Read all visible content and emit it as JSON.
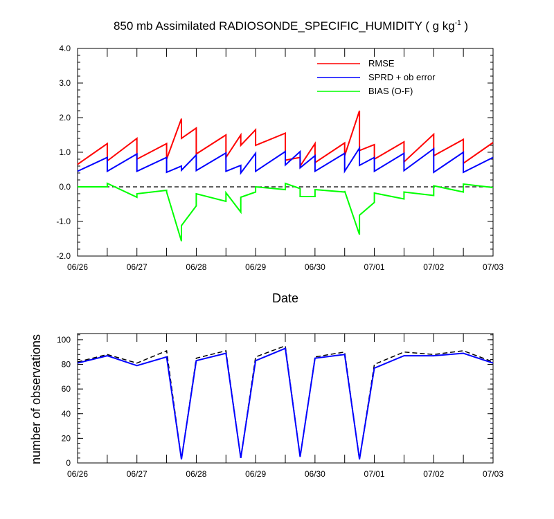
{
  "title": {
    "prefix": "850 mb Assimilated RADIOSONDE_SPECIFIC_HUMIDITY ( g kg",
    "superscript": "-1",
    "suffix": " )"
  },
  "top_xlabel": "Date",
  "bottom_ylabel": "number of observations",
  "chart_data": [
    {
      "type": "line",
      "title": "850 mb Assimilated RADIOSONDE_SPECIFIC_HUMIDITY ( g kg-1 )",
      "xlabel": "Date",
      "ylabel": "",
      "x_unit": "days since 06/26 00Z",
      "xlim": [
        0,
        7
      ],
      "ylim": [
        -2.0,
        4.0
      ],
      "x_tick_labels": [
        "06/26",
        "06/27",
        "06/28",
        "06/29",
        "06/30",
        "07/01",
        "07/02",
        "07/03"
      ],
      "y_tick_labels": [
        "-2.0",
        "-1.0",
        "0.0",
        "1.0",
        "2.0",
        "3.0",
        "4.0"
      ],
      "legend_position": "top-right",
      "zero_line": "dashed",
      "series": [
        {
          "name": "RMSE",
          "color": "#ff0000",
          "x": [
            0,
            0.5,
            0.5,
            1,
            1,
            1.5,
            1.5,
            1.75,
            1.75,
            2,
            2,
            2.5,
            2.5,
            2.75,
            2.75,
            3,
            3,
            3.5,
            3.5,
            3.75,
            3.75,
            4,
            4,
            4.5,
            4.5,
            4.75,
            4.75,
            5,
            5,
            5.5,
            5.5,
            6,
            6,
            6.5,
            6.5,
            7
          ],
          "y": [
            0.65,
            1.25,
            0.75,
            1.4,
            0.8,
            1.25,
            0.8,
            1.97,
            1.4,
            1.7,
            0.95,
            1.5,
            0.85,
            1.5,
            1.2,
            1.65,
            1.2,
            1.55,
            0.77,
            0.85,
            0.6,
            1.25,
            0.7,
            1.27,
            0.9,
            2.2,
            1.05,
            1.22,
            0.8,
            1.3,
            0.72,
            1.52,
            0.9,
            1.37,
            0.68,
            1.28
          ]
        },
        {
          "name": "SPRD + ob error",
          "color": "#0000ff",
          "x": [
            0,
            0.5,
            0.5,
            1,
            1,
            1.5,
            1.5,
            1.75,
            1.75,
            2,
            2,
            2.5,
            2.5,
            2.75,
            2.75,
            3,
            3,
            3.5,
            3.5,
            3.75,
            3.75,
            4,
            4,
            4.5,
            4.5,
            4.75,
            4.75,
            5,
            5,
            5.5,
            5.5,
            6,
            6,
            6.5,
            6.5,
            7
          ],
          "y": [
            0.45,
            0.85,
            0.45,
            0.95,
            0.45,
            0.85,
            0.42,
            0.6,
            0.48,
            0.92,
            0.47,
            0.98,
            0.45,
            0.62,
            0.4,
            0.97,
            0.45,
            1.02,
            0.63,
            1.02,
            0.55,
            0.9,
            0.45,
            0.97,
            0.45,
            1.12,
            0.62,
            0.85,
            0.45,
            0.97,
            0.47,
            1.1,
            0.42,
            1.0,
            0.42,
            0.85
          ]
        },
        {
          "name": "BIAS (O-F)",
          "color": "#00ff00",
          "x": [
            0,
            0.5,
            0.5,
            1,
            1,
            1.5,
            1.5,
            1.75,
            1.75,
            2,
            2,
            2.5,
            2.5,
            2.75,
            2.75,
            3,
            3,
            3.5,
            3.5,
            3.75,
            3.75,
            4,
            4,
            4.5,
            4.5,
            4.75,
            4.75,
            5,
            5,
            5.5,
            5.5,
            6,
            6,
            6.5,
            6.5,
            7
          ],
          "y": [
            0.0,
            0.0,
            0.1,
            -0.3,
            -0.2,
            -0.1,
            -0.15,
            -1.57,
            -1.12,
            -0.55,
            -0.2,
            -0.42,
            -0.17,
            -0.73,
            -0.3,
            -0.15,
            0.0,
            -0.08,
            0.1,
            -0.05,
            -0.28,
            -0.28,
            -0.08,
            -0.15,
            -0.12,
            -1.38,
            -0.82,
            -0.45,
            -0.18,
            -0.35,
            -0.15,
            -0.25,
            0.03,
            -0.15,
            0.08,
            -0.02
          ]
        }
      ]
    },
    {
      "type": "line",
      "title": "",
      "xlabel": "",
      "ylabel": "number of observations",
      "x_unit": "days since 06/26 00Z",
      "xlim": [
        0,
        7
      ],
      "ylim": [
        0,
        105
      ],
      "x_tick_labels": [
        "06/26",
        "06/27",
        "06/28",
        "06/29",
        "06/30",
        "07/01",
        "07/02",
        "07/03"
      ],
      "y_tick_labels": [
        "0",
        "20",
        "40",
        "60",
        "80",
        "100"
      ],
      "series": [
        {
          "style": "dashed",
          "color": "#000000",
          "x": [
            0,
            0.5,
            1,
            1.5,
            1.75,
            2,
            2.5,
            2.75,
            3,
            3.5,
            3.75,
            4,
            4.5,
            4.75,
            5,
            5.5,
            6,
            6.5,
            7
          ],
          "y": [
            82,
            88,
            81,
            91,
            3,
            85,
            91,
            4,
            86,
            95,
            5,
            86,
            90,
            3,
            80,
            90,
            88,
            91,
            82
          ]
        },
        {
          "style": "solid",
          "color": "#0000ff",
          "x": [
            0,
            0.5,
            1,
            1.5,
            1.75,
            2,
            2.5,
            2.75,
            3,
            3.5,
            3.75,
            4,
            4.5,
            4.75,
            5,
            5.5,
            6,
            6.5,
            7
          ],
          "y": [
            81,
            87,
            79,
            86,
            3,
            83,
            89,
            4,
            83,
            93,
            5,
            85,
            88,
            3,
            77,
            87,
            87,
            89,
            81
          ]
        }
      ]
    }
  ]
}
